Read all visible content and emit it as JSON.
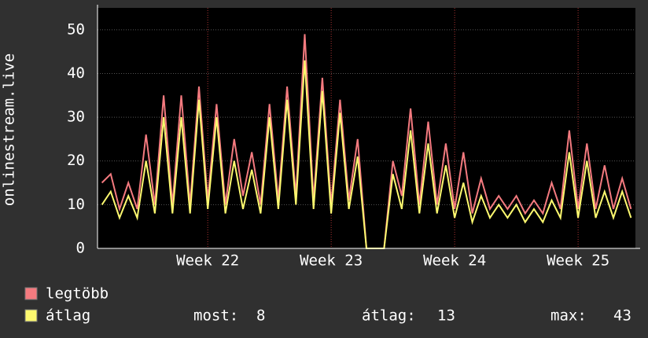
{
  "chart_data": {
    "type": "line",
    "y_label": "onlinestream.live",
    "categories": [
      null,
      null,
      null,
      null,
      null,
      null,
      null,
      null,
      null,
      null,
      null,
      null,
      "Week 22",
      null,
      null,
      null,
      null,
      null,
      null,
      null,
      null,
      null,
      null,
      null,
      null,
      null,
      "Week 23",
      null,
      null,
      null,
      null,
      null,
      null,
      null,
      null,
      null,
      null,
      null,
      null,
      null,
      "Week 24",
      null,
      null,
      null,
      null,
      null,
      null,
      null,
      null,
      null,
      null,
      null,
      null,
      null,
      "Week 25",
      null,
      null,
      null,
      null,
      null,
      null
    ],
    "series": [
      {
        "name": "legtöbb",
        "color": "#f47a7f",
        "values": [
          15,
          17,
          9,
          15,
          9,
          26,
          10,
          35,
          10,
          35,
          10,
          37,
          11,
          33,
          10,
          25,
          12,
          22,
          10,
          33,
          11,
          37,
          12,
          49,
          11,
          39,
          10,
          34,
          11,
          25,
          0,
          0,
          0,
          20,
          12,
          32,
          10,
          29,
          10,
          24,
          9,
          22,
          8,
          16,
          9,
          12,
          9,
          12,
          8,
          11,
          8,
          15,
          9,
          27,
          9,
          24,
          9,
          19,
          9,
          16,
          9
        ]
      },
      {
        "name": "átlag",
        "color": "#fdf96f",
        "values": [
          10,
          13,
          7,
          12,
          7,
          20,
          8,
          30,
          8,
          30,
          8,
          34,
          9,
          30,
          8,
          20,
          9,
          18,
          8,
          30,
          9,
          34,
          10,
          43,
          9,
          36,
          8,
          31,
          9,
          21,
          0,
          0,
          0,
          17,
          9,
          27,
          8,
          24,
          8,
          19,
          7,
          15,
          6,
          12,
          7,
          10,
          7,
          10,
          6,
          9,
          6,
          11,
          7,
          22,
          7,
          20,
          7,
          13,
          7,
          13,
          7
        ]
      }
    ],
    "ylim": [
      0,
      55
    ],
    "yticks": [
      0,
      10,
      20,
      30,
      40,
      50
    ],
    "grid": true,
    "stats": [
      {
        "label": "most:",
        "value": 8
      },
      {
        "label": "átlag:",
        "value": 13
      },
      {
        "label": "max:",
        "value": 43
      }
    ]
  }
}
